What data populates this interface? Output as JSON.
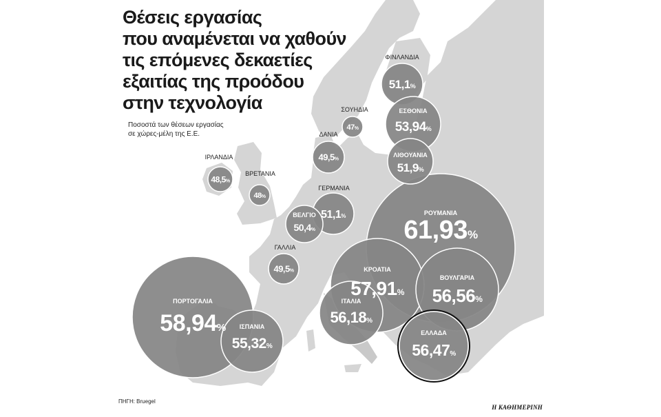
{
  "title_lines": [
    "Θέσεις εργασίας",
    "που αναμένεται να χαθούν",
    "τις επόμενες δεκαετίες",
    "εξαιτίας της προόδου",
    "στην τεχνολογία"
  ],
  "subtitle_lines": [
    "Ποσοστά των θέσεων εργασίας",
    "σε χώρες-μέλη της Ε.Ε."
  ],
  "source": "ΠΗΓΗ: Bruegel",
  "publisher": "Η ΚΑΘΗΜΕΡΙΝΗ",
  "percent_symbol": "%",
  "colors": {
    "bubble": "#858585",
    "bubble_stroke": "#ffffff",
    "highlight_stroke": "#111111",
    "land": "#d5d5d5",
    "land_dark": "#c6c6c6",
    "sea": "#ffffff"
  },
  "chart_data": {
    "type": "bubble-map",
    "unit": "%",
    "countries": [
      {
        "name": "ΦΙΝΛΑΝΔΙΑ",
        "value": 51.1,
        "display": "51,1"
      },
      {
        "name": "ΣΟΥΗΔΙΑ",
        "value": 47,
        "display": "47"
      },
      {
        "name": "ΕΣΘΟΝΙΑ",
        "value": 53.94,
        "display": "53,94"
      },
      {
        "name": "ΔΑΝΙΑ",
        "value": 49.5,
        "display": "49,5"
      },
      {
        "name": "ΛΙΘΟΥΑΝΙΑ",
        "value": 51.9,
        "display": "51,9"
      },
      {
        "name": "ΙΡΛΑΝΔΙΑ",
        "value": 48.5,
        "display": "48,5"
      },
      {
        "name": "ΒΡΕΤΑΝΙΑ",
        "value": 48,
        "display": "48"
      },
      {
        "name": "ΓΕΡΜΑΝΙΑ",
        "value": 51.1,
        "display": "51,1"
      },
      {
        "name": "ΒΕΛΓΙΟ",
        "value": 50.4,
        "display": "50,4"
      },
      {
        "name": "ΓΑΛΛΙΑ",
        "value": 49.5,
        "display": "49,5"
      },
      {
        "name": "ΡΟΥΜΑΝΙΑ",
        "value": 61.93,
        "display": "61,93"
      },
      {
        "name": "ΚΡΟΑΤΙΑ",
        "value": 57.91,
        "display": "57,91"
      },
      {
        "name": "ΒΟΥΛΓΑΡΙΑ",
        "value": 56.56,
        "display": "56,56"
      },
      {
        "name": "ΙΤΑΛΙΑ",
        "value": 56.18,
        "display": "56,18"
      },
      {
        "name": "ΠΟΡΤΟΓΑΛΙΑ",
        "value": 58.94,
        "display": "58,94"
      },
      {
        "name": "ΙΣΠΑΝΙΑ",
        "value": 55.32,
        "display": "55,32"
      },
      {
        "name": "ΕΛΛΑΔΑ",
        "value": 56.47,
        "display": "56,47",
        "highlighted": true
      }
    ]
  }
}
